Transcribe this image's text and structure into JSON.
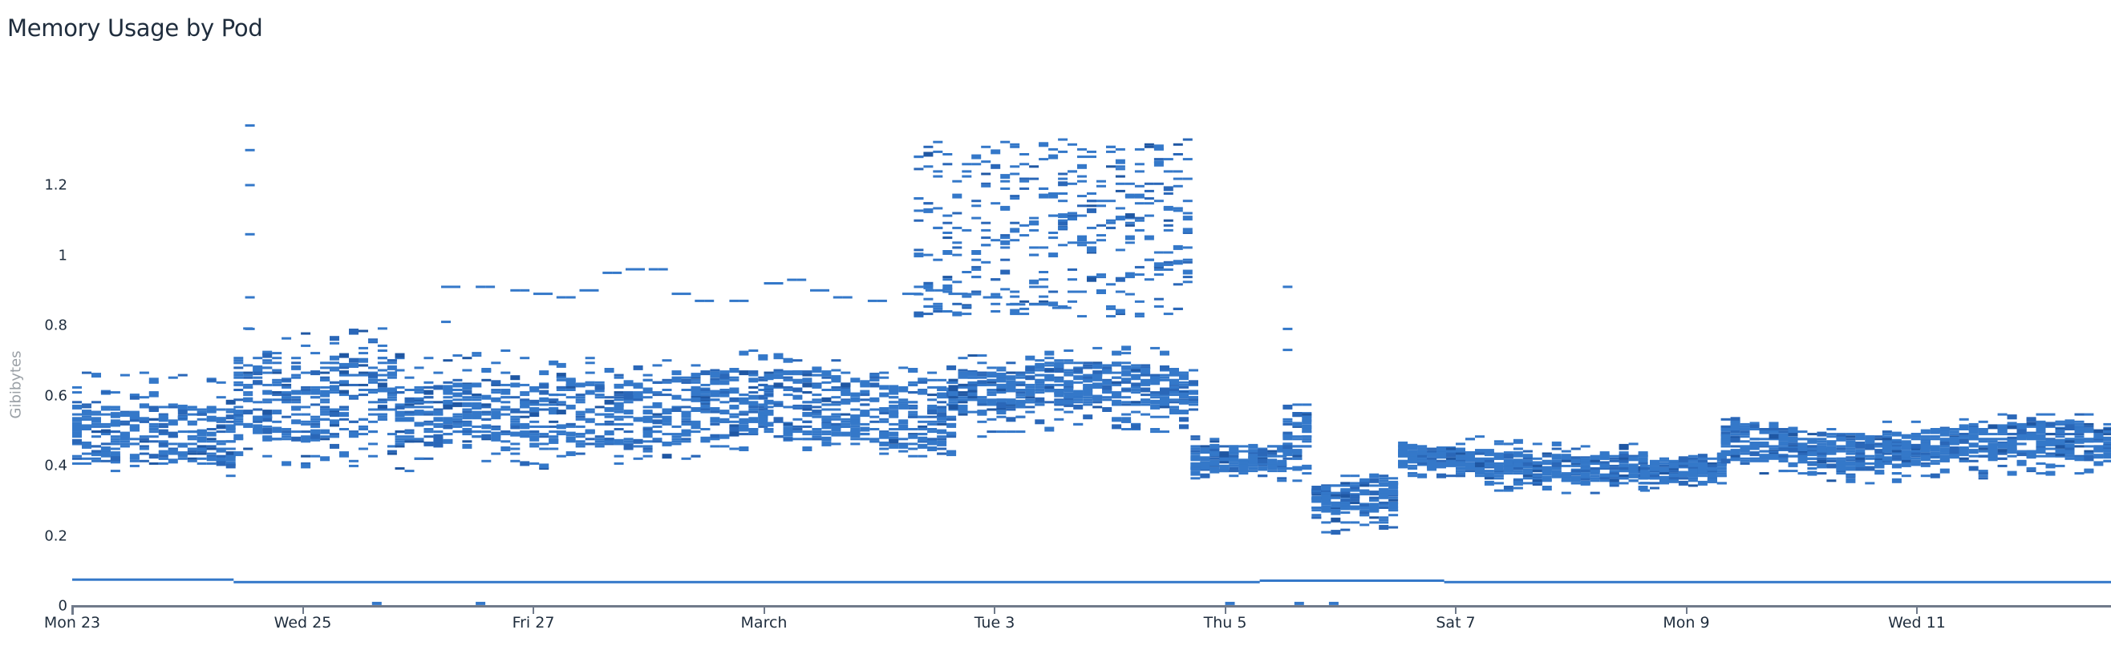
{
  "title": "Memory Usage by Pod",
  "colors": {
    "cell": "#3478c9",
    "cell_dark": "#2a67b8",
    "cell_darker": "#1f57a3",
    "axis": "#707a8a",
    "text": "#1f2d3d",
    "axis_title": "#9aa0a6"
  },
  "chart_data": {
    "type": "heatmap",
    "title": "Memory Usage by Pod",
    "xlabel": "",
    "ylabel": "Gibibytes",
    "ylim": [
      0,
      1.4
    ],
    "y_ticks": [
      0,
      0.2,
      0.4,
      0.6,
      0.8,
      1,
      1.2
    ],
    "y_tick_labels": [
      "0",
      "0.2",
      "0.4",
      "0.6",
      "0.8",
      "1",
      "1.2"
    ],
    "x_tick_labels": [
      "Mon 23",
      "Wed 25",
      "Fri 27",
      "March",
      "Tue 3",
      "Thu 5",
      "Sat 7",
      "Mon 9",
      "Wed 11"
    ],
    "x_range_days": [
      0,
      17.7
    ],
    "x_tick_days": [
      0,
      2,
      4,
      6,
      8,
      10,
      12,
      14,
      16
    ],
    "grid": false,
    "legend": "none",
    "bin_hours": 2,
    "bin_height_gib": 0.007,
    "bands": [
      {
        "from_day": 0.0,
        "to_day": 1.4,
        "low": 0.36,
        "high": 0.66,
        "core_low": 0.4,
        "core_high": 0.56
      },
      {
        "from_day": 1.4,
        "to_day": 2.8,
        "low": 0.41,
        "high": 0.8,
        "core_low": 0.48,
        "core_high": 0.72
      },
      {
        "from_day": 2.8,
        "to_day": 4.2,
        "low": 0.38,
        "high": 0.72,
        "core_low": 0.45,
        "core_high": 0.63
      },
      {
        "from_day": 4.2,
        "to_day": 6.0,
        "low": 0.42,
        "high": 0.72,
        "core_low": 0.47,
        "core_high": 0.66
      },
      {
        "from_day": 6.0,
        "to_day": 7.6,
        "low": 0.43,
        "high": 0.7,
        "core_low": 0.46,
        "core_high": 0.66
      },
      {
        "from_day": 7.6,
        "to_day": 9.7,
        "low": 0.49,
        "high": 0.73,
        "core_low": 0.56,
        "core_high": 0.68
      },
      {
        "from_day": 9.7,
        "to_day": 10.5,
        "low": 0.37,
        "high": 0.5,
        "core_low": 0.39,
        "core_high": 0.47
      },
      {
        "from_day": 10.5,
        "to_day": 10.75,
        "low": 0.36,
        "high": 0.6,
        "core_low": 0.4,
        "core_high": 0.56
      },
      {
        "from_day": 10.75,
        "to_day": 11.5,
        "low": 0.21,
        "high": 0.37,
        "core_low": 0.26,
        "core_high": 0.35
      },
      {
        "from_day": 11.5,
        "to_day": 12.0,
        "low": 0.35,
        "high": 0.45,
        "core_low": 0.38,
        "core_high": 0.44
      },
      {
        "from_day": 12.0,
        "to_day": 13.6,
        "low": 0.33,
        "high": 0.48,
        "core_low": 0.36,
        "core_high": 0.44
      },
      {
        "from_day": 13.6,
        "to_day": 14.3,
        "low": 0.33,
        "high": 0.42,
        "core_low": 0.35,
        "core_high": 0.41
      },
      {
        "from_day": 14.3,
        "to_day": 15.7,
        "low": 0.36,
        "high": 0.52,
        "core_low": 0.4,
        "core_high": 0.5
      },
      {
        "from_day": 15.7,
        "to_day": 17.7,
        "low": 0.36,
        "high": 0.54,
        "core_low": 0.41,
        "core_high": 0.51
      }
    ],
    "upper_cluster": {
      "from_day": 7.3,
      "to_day": 9.7,
      "low": 0.82,
      "high": 1.33
    },
    "singleton_line": [
      {
        "day": 3.2,
        "value": 0.91
      },
      {
        "day": 3.5,
        "value": 0.91
      },
      {
        "day": 3.8,
        "value": 0.9
      },
      {
        "day": 4.0,
        "value": 0.89
      },
      {
        "day": 4.2,
        "value": 0.88
      },
      {
        "day": 4.4,
        "value": 0.9
      },
      {
        "day": 4.6,
        "value": 0.95
      },
      {
        "day": 4.8,
        "value": 0.96
      },
      {
        "day": 5.0,
        "value": 0.96
      },
      {
        "day": 5.2,
        "value": 0.89
      },
      {
        "day": 5.4,
        "value": 0.87
      },
      {
        "day": 5.7,
        "value": 0.87
      },
      {
        "day": 6.0,
        "value": 0.92
      },
      {
        "day": 6.2,
        "value": 0.93
      },
      {
        "day": 6.4,
        "value": 0.9
      },
      {
        "day": 6.6,
        "value": 0.88
      },
      {
        "day": 6.9,
        "value": 0.87
      },
      {
        "day": 7.2,
        "value": 0.89
      },
      {
        "day": 7.4,
        "value": 0.9
      },
      {
        "day": 7.6,
        "value": 0.89
      },
      {
        "day": 7.9,
        "value": 0.88
      },
      {
        "day": 8.1,
        "value": 0.86
      },
      {
        "day": 8.3,
        "value": 0.86
      },
      {
        "day": 8.5,
        "value": 0.85
      }
    ],
    "spikes": [
      {
        "day": 1.5,
        "values": [
          1.37,
          1.3,
          1.2,
          1.06,
          0.88,
          0.79
        ]
      },
      {
        "day": 10.5,
        "values": [
          0.91,
          0.79,
          0.73
        ]
      },
      {
        "day": 3.2,
        "values": [
          0.81
        ]
      }
    ],
    "baseline_series": [
      {
        "from_day": 0.0,
        "to_day": 1.4,
        "value": 0.075
      },
      {
        "from_day": 1.4,
        "to_day": 10.3,
        "value": 0.068
      },
      {
        "from_day": 10.3,
        "to_day": 11.9,
        "value": 0.072
      },
      {
        "from_day": 11.9,
        "to_day": 17.7,
        "value": 0.068
      }
    ],
    "near_zero_points": [
      {
        "day": 2.6,
        "value": 0.003
      },
      {
        "day": 3.5,
        "value": 0.003
      },
      {
        "day": 10.0,
        "value": 0.003
      },
      {
        "day": 10.6,
        "value": 0.003
      },
      {
        "day": 10.9,
        "value": 0.003
      }
    ]
  }
}
